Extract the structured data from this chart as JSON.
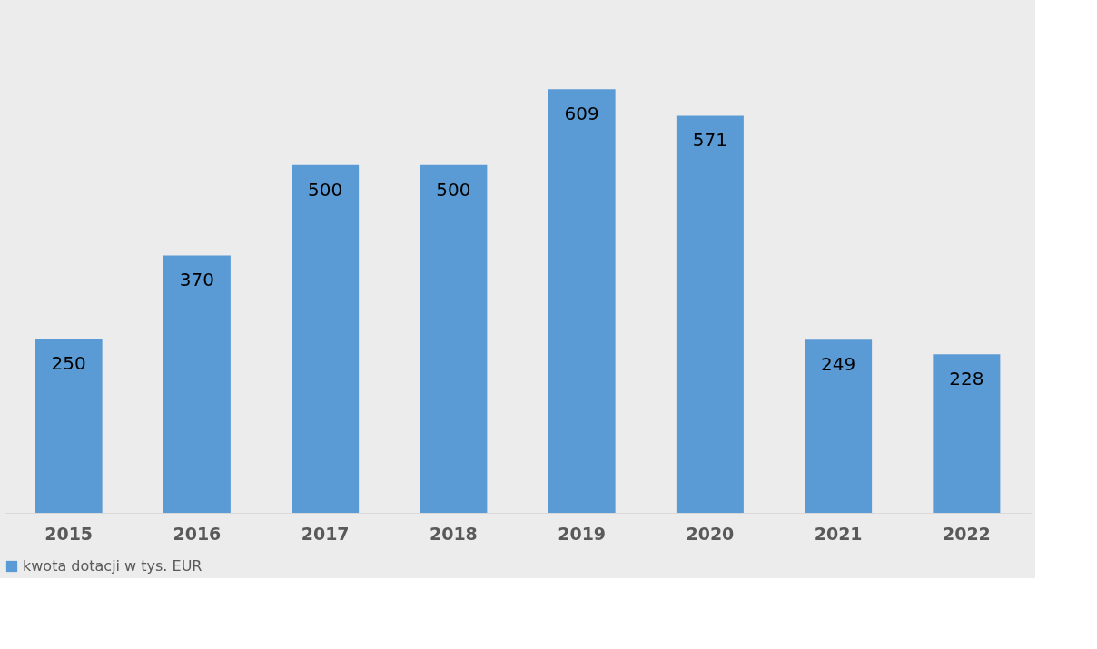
{
  "chart_data": {
    "type": "bar",
    "categories": [
      "2015",
      "2016",
      "2017",
      "2018",
      "2019",
      "2020",
      "2021",
      "2022"
    ],
    "series": [
      {
        "name": "kwota dotacji w tys. EUR",
        "color": "#5b9bd5",
        "values": [
          250,
          370,
          500,
          500,
          609,
          571,
          249,
          228
        ]
      }
    ],
    "data_labels": true,
    "legend": "bottom",
    "grid": false
  }
}
